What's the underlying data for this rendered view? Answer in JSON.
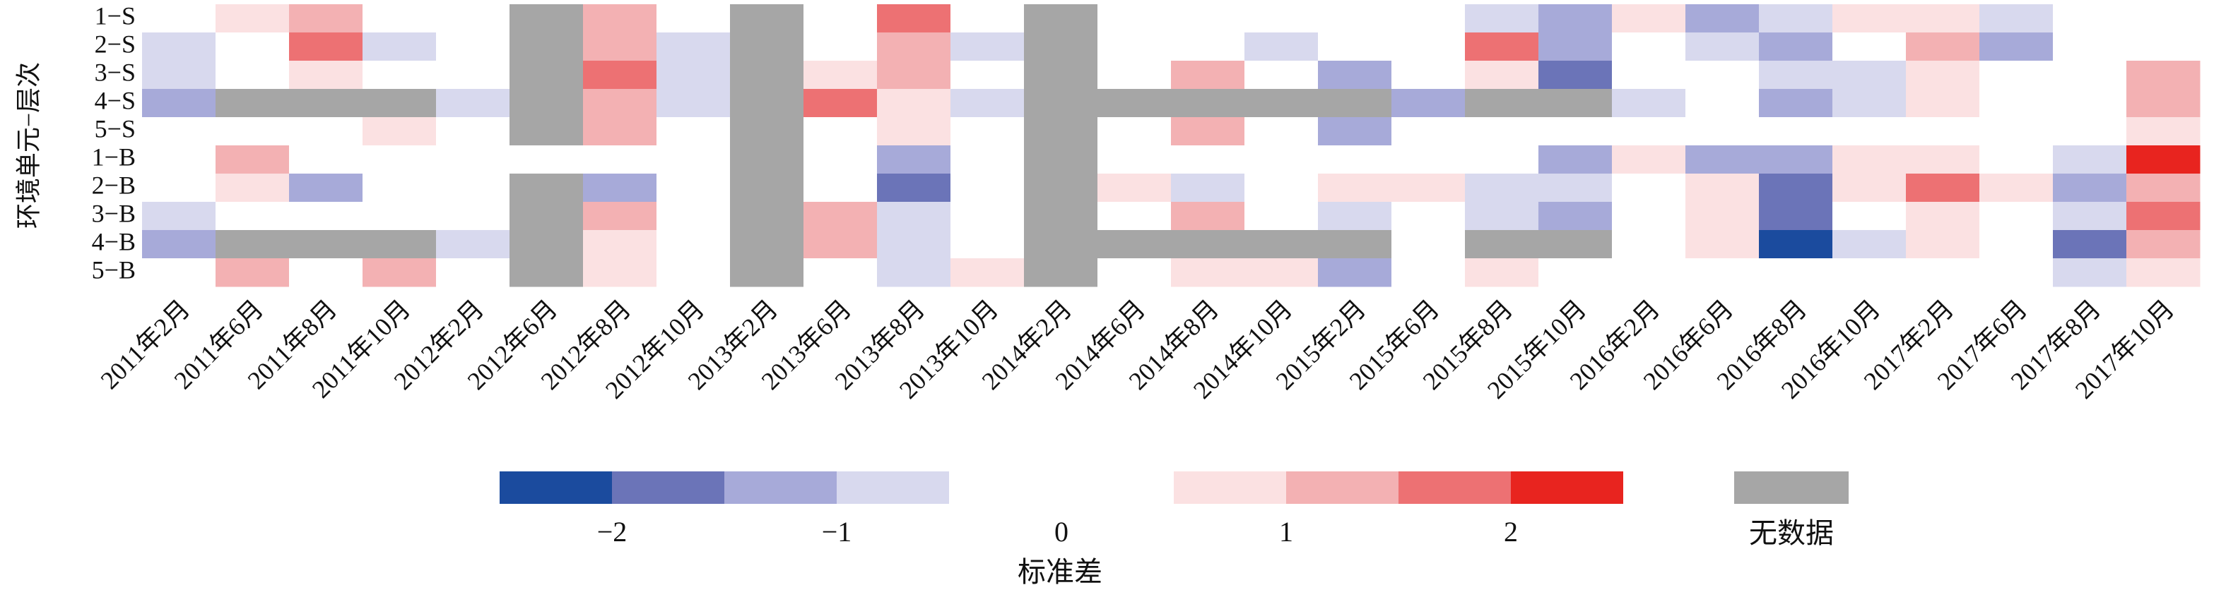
{
  "chart_data": {
    "type": "heatmap",
    "y_label": "环境单元−层次",
    "x_categories": [
      "2011年2月",
      "2011年6月",
      "2011年8月",
      "2011年10月",
      "2012年2月",
      "2012年6月",
      "2012年8月",
      "2012年10月",
      "2013年2月",
      "2013年6月",
      "2013年8月",
      "2013年10月",
      "2014年2月",
      "2014年6月",
      "2014年8月",
      "2014年10月",
      "2015年2月",
      "2015年6月",
      "2015年8月",
      "2015年10月",
      "2016年2月",
      "2016年6月",
      "2016年8月",
      "2016年10月",
      "2017年2月",
      "2017年6月",
      "2017年8月",
      "2017年10月"
    ],
    "y_categories": [
      "1−S",
      "2−S",
      "3−S",
      "4−S",
      "5−S",
      "1−B",
      "2−B",
      "3−B",
      "4−B",
      "5−B"
    ],
    "z": [
      [
        0,
        0.75,
        1.25,
        0,
        0,
        null,
        1.25,
        0,
        null,
        0,
        1.75,
        0,
        null,
        0,
        0,
        0,
        0,
        0,
        -0.75,
        -1.25,
        0.75,
        -1.25,
        -0.75,
        0.75,
        0.75,
        -0.75,
        0,
        0
      ],
      [
        -0.75,
        0,
        1.75,
        -0.75,
        0,
        null,
        1.25,
        -0.75,
        null,
        0,
        1.25,
        -0.75,
        null,
        0,
        0,
        -0.75,
        0,
        0,
        1.75,
        -1.25,
        0,
        -0.75,
        -1.25,
        0,
        1.25,
        -1.25,
        0,
        0
      ],
      [
        -0.75,
        0,
        0.75,
        0,
        0,
        null,
        1.75,
        -0.75,
        null,
        0.75,
        1.25,
        0,
        null,
        0,
        1.25,
        0,
        -1.25,
        0,
        0.75,
        -1.75,
        0,
        0,
        -0.75,
        -0.75,
        0.75,
        0,
        0,
        1.25
      ],
      [
        -1.25,
        null,
        null,
        null,
        -0.75,
        null,
        1.25,
        -0.75,
        null,
        1.75,
        0.75,
        -0.75,
        null,
        null,
        null,
        null,
        null,
        -1.25,
        null,
        null,
        -0.75,
        0,
        -1.25,
        -0.75,
        0.75,
        0,
        0,
        1.25
      ],
      [
        0,
        0,
        0,
        0.75,
        0,
        null,
        1.25,
        0,
        null,
        0,
        0.75,
        0,
        null,
        0,
        1.25,
        0,
        -1.25,
        0,
        0,
        0,
        0,
        0,
        0,
        0,
        0,
        0,
        0,
        0.75
      ],
      [
        0,
        1.25,
        0,
        0,
        0,
        0,
        0,
        0,
        null,
        0,
        -1.25,
        0,
        null,
        0,
        0,
        0,
        0,
        0,
        0,
        -1.25,
        0.75,
        -1.25,
        -1.25,
        0.75,
        0.75,
        0,
        -0.75,
        2.25
      ],
      [
        0,
        0.75,
        -1.25,
        0,
        0,
        null,
        -1.25,
        0,
        null,
        0,
        -1.75,
        0,
        null,
        0.75,
        -0.75,
        0,
        0.75,
        0.75,
        -0.75,
        -0.75,
        0,
        0.75,
        -1.75,
        0.75,
        1.75,
        0.75,
        -1.25,
        1.25
      ],
      [
        -0.75,
        0,
        0,
        0,
        0,
        null,
        1.25,
        0,
        null,
        1.25,
        -0.75,
        0,
        null,
        0,
        1.25,
        0,
        -0.75,
        0,
        -0.75,
        -1.25,
        0,
        0.75,
        -1.75,
        0,
        0.75,
        0,
        -0.75,
        1.75
      ],
      [
        -1.25,
        null,
        null,
        null,
        -0.75,
        null,
        0.75,
        0,
        null,
        1.25,
        -0.75,
        0,
        null,
        null,
        null,
        null,
        null,
        0,
        null,
        null,
        0,
        0.75,
        -2.25,
        -0.75,
        0.75,
        0,
        -1.75,
        1.25
      ],
      [
        0,
        1.25,
        0,
        1.25,
        0,
        null,
        0.75,
        0,
        null,
        0,
        -0.75,
        0.75,
        null,
        0,
        0.75,
        0.75,
        -1.25,
        0,
        0.75,
        0,
        0,
        0,
        0,
        0,
        0,
        0,
        -0.75,
        0.75
      ]
    ],
    "colorbar": {
      "bounds": [
        -2.5,
        -2,
        -1.5,
        -1,
        -0.5,
        0.5,
        1,
        1.5,
        2,
        2.5
      ],
      "colors": [
        "#1b4b9e",
        "#6b74b8",
        "#a7aad9",
        "#d8d9ee",
        "#ffffff",
        "#fbe1e2",
        "#f3b1b3",
        "#ed7173",
        "#e8241f"
      ],
      "ticks": [
        {
          "value": -2,
          "label": "−2"
        },
        {
          "value": -1,
          "label": "−1"
        },
        0,
        1,
        2
      ],
      "label": "标准差"
    },
    "nodata_color": "#a6a6a6",
    "nodata_label": "无数据"
  }
}
